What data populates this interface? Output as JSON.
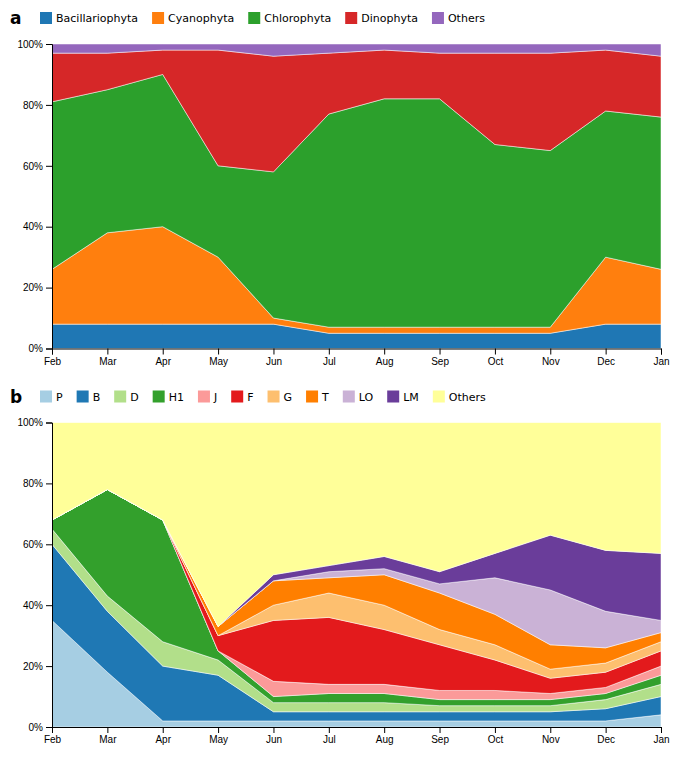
{
  "chart_data": [
    {
      "type": "area",
      "title": "a",
      "stacked": true,
      "grid": false,
      "legend": "top",
      "categories": [
        "Feb",
        "Mar",
        "Apr",
        "May",
        "Jun",
        "Jul",
        "Aug",
        "Sep",
        "Oct",
        "Nov",
        "Dec",
        "Jan"
      ],
      "series": [
        {
          "name": "Bacillariophyta",
          "values": [
            8,
            8,
            8,
            8,
            8,
            5,
            5,
            5,
            5,
            5,
            8,
            8
          ]
        },
        {
          "name": "Cyanophyta",
          "values": [
            18,
            30,
            32,
            22,
            2,
            2,
            2,
            2,
            2,
            2,
            22,
            18
          ]
        },
        {
          "name": "Chlorophyta",
          "values": [
            55,
            47,
            50,
            30,
            48,
            70,
            75,
            75,
            60,
            58,
            48,
            50
          ]
        },
        {
          "name": "Dinophyta",
          "values": [
            16,
            12,
            8,
            38,
            38,
            20,
            16,
            15,
            30,
            32,
            20,
            20
          ]
        },
        {
          "name": "Others",
          "values": [
            3,
            3,
            2,
            2,
            4,
            3,
            2,
            3,
            3,
            3,
            2,
            4
          ]
        }
      ],
      "ylim": [
        0,
        100
      ],
      "yticks": [
        {
          "value": 0,
          "label": "0%"
        },
        {
          "value": 20,
          "label": "20%"
        },
        {
          "value": 40,
          "label": "40%"
        },
        {
          "value": 60,
          "label": "60%"
        },
        {
          "value": 80,
          "label": "80%"
        },
        {
          "value": 100,
          "label": "100%"
        }
      ]
    },
    {
      "type": "area",
      "title": "b",
      "stacked": true,
      "grid": false,
      "legend": "top",
      "categories": [
        "Feb",
        "Mar",
        "Apr",
        "May",
        "Jun",
        "Jul",
        "Aug",
        "Sep",
        "Oct",
        "Nov",
        "Dec",
        "Jan"
      ],
      "series": [
        {
          "name": "P",
          "values": [
            35,
            18,
            2,
            2,
            2,
            2,
            2,
            2,
            2,
            2,
            2,
            4
          ]
        },
        {
          "name": "B",
          "values": [
            25,
            20,
            18,
            15,
            3,
            3,
            3,
            3,
            3,
            3,
            4,
            6
          ]
        },
        {
          "name": "D",
          "values": [
            5,
            5,
            8,
            5,
            3,
            3,
            3,
            2,
            2,
            2,
            3,
            4
          ]
        },
        {
          "name": "H1",
          "values": [
            3,
            35,
            40,
            3,
            2,
            3,
            3,
            2,
            2,
            2,
            2,
            3
          ]
        },
        {
          "name": "J",
          "values": [
            0,
            0,
            0,
            0,
            5,
            3,
            3,
            3,
            3,
            2,
            2,
            3
          ]
        },
        {
          "name": "F",
          "values": [
            0,
            0,
            0,
            5,
            20,
            22,
            18,
            15,
            10,
            5,
            5,
            5
          ]
        },
        {
          "name": "G",
          "values": [
            0,
            0,
            0,
            0,
            5,
            8,
            8,
            5,
            5,
            3,
            3,
            3
          ]
        },
        {
          "name": "T",
          "values": [
            0,
            0,
            0,
            3,
            8,
            5,
            10,
            12,
            10,
            8,
            5,
            3
          ]
        },
        {
          "name": "LO",
          "values": [
            0,
            0,
            0,
            0,
            0,
            2,
            2,
            3,
            12,
            18,
            12,
            4
          ]
        },
        {
          "name": "LM",
          "values": [
            0,
            0,
            0,
            0,
            2,
            2,
            4,
            4,
            8,
            18,
            20,
            22
          ]
        },
        {
          "name": "Others",
          "values": [
            32,
            22,
            32,
            67,
            50,
            47,
            44,
            49,
            43,
            37,
            42,
            43
          ]
        }
      ],
      "ylim": [
        0,
        100
      ],
      "yticks": [
        {
          "value": 0,
          "label": "0%"
        },
        {
          "value": 20,
          "label": "20%"
        },
        {
          "value": 40,
          "label": "40%"
        },
        {
          "value": 60,
          "label": "60%"
        },
        {
          "value": 80,
          "label": "80%"
        },
        {
          "value": 100,
          "label": "100%"
        }
      ]
    }
  ]
}
